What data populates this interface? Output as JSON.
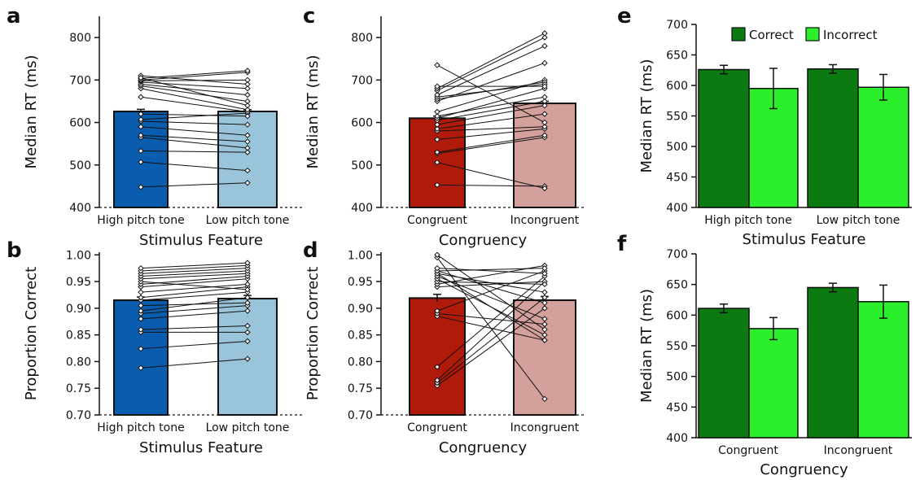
{
  "colors": {
    "high_pitch": "#0a5cae",
    "low_pitch": "#9ac4d9",
    "congruent": "#b01a0a",
    "incongruent": "#d4a09c",
    "correct": "#0b7a11",
    "incorrect": "#2cef2c",
    "line": "#111111"
  },
  "chart_data": [
    {
      "panel": "a",
      "type": "bar",
      "overlay": "paired-lines",
      "categories": [
        "High pitch tone",
        "Low pitch tone"
      ],
      "values": [
        626,
        626
      ],
      "errors": [
        5,
        4
      ],
      "ylim": [
        400,
        850
      ],
      "yticks": [
        400,
        500,
        600,
        700,
        800
      ],
      "xlabel": "Stimulus Feature",
      "ylabel": "Median RT (ms)",
      "pairs": [
        [
          448,
          458
        ],
        [
          507,
          487
        ],
        [
          533,
          530
        ],
        [
          565,
          540
        ],
        [
          570,
          555
        ],
        [
          590,
          570
        ],
        [
          603,
          595
        ],
        [
          607,
          622
        ],
        [
          620,
          615
        ],
        [
          660,
          625
        ],
        [
          680,
          630
        ],
        [
          686,
          650
        ],
        [
          690,
          665
        ],
        [
          695,
          680
        ],
        [
          698,
          700
        ],
        [
          700,
          718
        ],
        [
          704,
          722
        ],
        [
          710,
          690
        ],
        [
          705,
          640
        ]
      ]
    },
    {
      "panel": "b",
      "type": "bar",
      "overlay": "paired-lines",
      "categories": [
        "High pitch tone",
        "Low pitch tone"
      ],
      "values": [
        0.915,
        0.918
      ],
      "errors": [
        0.006,
        0.006
      ],
      "ylim": [
        0.7,
        1.005
      ],
      "yticks": [
        "0.70",
        "0.75",
        "0.80",
        "0.85",
        "0.90",
        "0.95",
        "1.00"
      ],
      "xlabel": "Stimulus Feature",
      "ylabel": "Proportion Correct",
      "pairs": [
        [
          0.788,
          0.805
        ],
        [
          0.824,
          0.838
        ],
        [
          0.855,
          0.855
        ],
        [
          0.86,
          0.867
        ],
        [
          0.88,
          0.895
        ],
        [
          0.89,
          0.905
        ],
        [
          0.895,
          0.92
        ],
        [
          0.905,
          0.91
        ],
        [
          0.915,
          0.93
        ],
        [
          0.92,
          0.94
        ],
        [
          0.93,
          0.945
        ],
        [
          0.94,
          0.955
        ],
        [
          0.945,
          0.96
        ],
        [
          0.95,
          0.935
        ],
        [
          0.955,
          0.965
        ],
        [
          0.96,
          0.97
        ],
        [
          0.965,
          0.975
        ],
        [
          0.97,
          0.98
        ],
        [
          0.975,
          0.985
        ]
      ]
    },
    {
      "panel": "c",
      "type": "bar",
      "overlay": "paired-lines",
      "categories": [
        "Congruent",
        "Incongruent"
      ],
      "values": [
        610,
        645
      ],
      "errors": [
        5,
        5
      ],
      "ylim": [
        400,
        850
      ],
      "yticks": [
        400,
        500,
        600,
        700,
        800
      ],
      "xlabel": "Congruency",
      "ylabel": "Median RT (ms)",
      "pairs": [
        [
          453,
          450
        ],
        [
          506,
          445
        ],
        [
          527,
          565
        ],
        [
          530,
          570
        ],
        [
          560,
          585
        ],
        [
          580,
          590
        ],
        [
          585,
          620
        ],
        [
          595,
          640
        ],
        [
          605,
          650
        ],
        [
          610,
          680
        ],
        [
          615,
          660
        ],
        [
          625,
          700
        ],
        [
          650,
          740
        ],
        [
          655,
          695
        ],
        [
          660,
          690
        ],
        [
          665,
          780
        ],
        [
          675,
          800
        ],
        [
          680,
          810
        ],
        [
          685,
          685
        ],
        [
          735,
          600
        ]
      ]
    },
    {
      "panel": "d",
      "type": "bar",
      "overlay": "paired-lines",
      "categories": [
        "Congruent",
        "Incongruent"
      ],
      "values": [
        0.919,
        0.915
      ],
      "errors": [
        0.007,
        0.007
      ],
      "ylim": [
        0.7,
        1.005
      ],
      "yticks": [
        "0.70",
        "0.75",
        "0.80",
        "0.85",
        "0.90",
        "0.95",
        "1.00"
      ],
      "xlabel": "Congruency",
      "ylabel": "Proportion Correct",
      "pairs": [
        [
          0.755,
          0.9
        ],
        [
          0.76,
          0.92
        ],
        [
          0.765,
          0.95
        ],
        [
          0.79,
          0.96
        ],
        [
          0.885,
          0.84
        ],
        [
          0.89,
          0.87
        ],
        [
          0.895,
          0.97
        ],
        [
          0.94,
          0.95
        ],
        [
          0.945,
          0.98
        ],
        [
          0.95,
          0.945
        ],
        [
          0.955,
          0.85
        ],
        [
          0.96,
          0.88
        ],
        [
          0.965,
          0.93
        ],
        [
          0.965,
          0.84
        ],
        [
          0.97,
          0.975
        ],
        [
          0.97,
          0.91
        ],
        [
          0.975,
          0.965
        ],
        [
          0.995,
          0.73
        ],
        [
          1.0,
          0.86
        ]
      ]
    },
    {
      "panel": "e",
      "type": "bar",
      "categories": [
        "High pitch tone",
        "Low pitch tone"
      ],
      "series": [
        {
          "name": "Correct",
          "values": [
            626,
            627
          ],
          "errors": [
            7,
            7
          ]
        },
        {
          "name": "Incorrect",
          "values": [
            595,
            597
          ],
          "errors": [
            33,
            21
          ]
        }
      ],
      "legend": "top-center",
      "ylim": [
        400,
        700
      ],
      "yticks": [
        400,
        450,
        500,
        550,
        600,
        650,
        700
      ],
      "xlabel": "Stimulus Feature",
      "ylabel": "Median RT (ms)"
    },
    {
      "panel": "f",
      "type": "bar",
      "categories": [
        "Congruent",
        "Incongruent"
      ],
      "series": [
        {
          "name": "Correct",
          "values": [
            611,
            645
          ],
          "errors": [
            7,
            7
          ]
        },
        {
          "name": "Incorrect",
          "values": [
            578,
            622
          ],
          "errors": [
            18,
            27
          ]
        }
      ],
      "ylim": [
        400,
        700
      ],
      "yticks": [
        400,
        450,
        500,
        550,
        600,
        650,
        700
      ],
      "xlabel": "Congruency",
      "ylabel": "Median RT (ms)"
    }
  ]
}
